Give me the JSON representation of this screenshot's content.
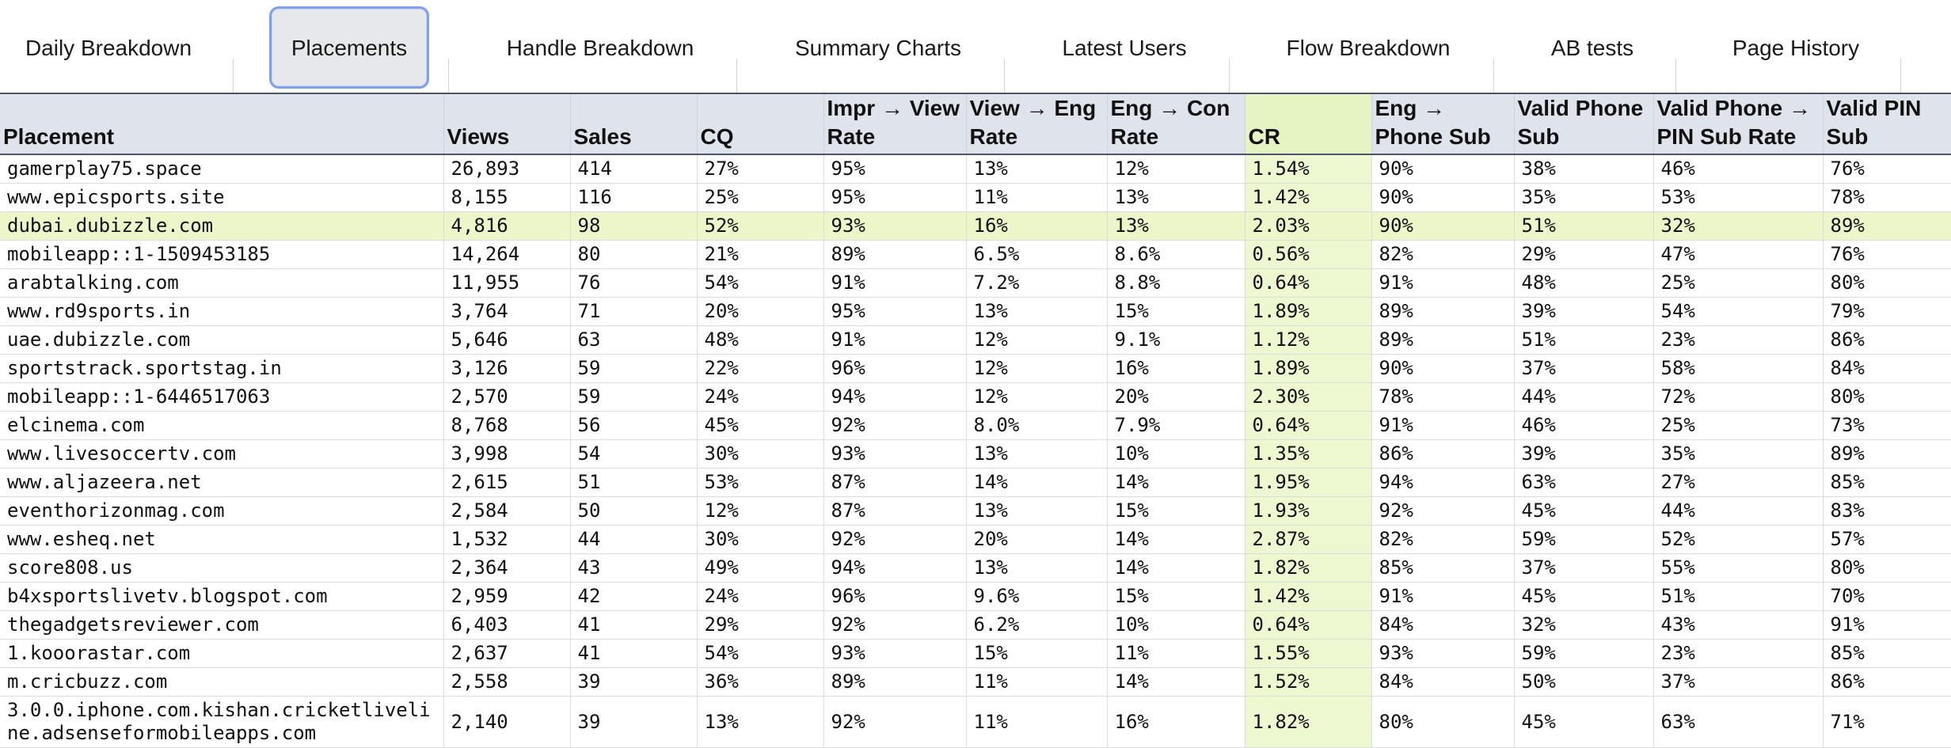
{
  "tabs": [
    {
      "label": "Daily Breakdown"
    },
    {
      "label": "Placements"
    },
    {
      "label": "Handle Breakdown"
    },
    {
      "label": "Summary Charts"
    },
    {
      "label": "Latest Users"
    },
    {
      "label": "Flow Breakdown"
    },
    {
      "label": "AB tests"
    },
    {
      "label": "Page History"
    }
  ],
  "active_tab": "Placements",
  "accent_colors": {
    "active_tab_border": "#7f9fe8",
    "cr_column": "#eef8d0",
    "highlight_row": "#ecf6c9",
    "header_bg": "#dfe4ec"
  },
  "table": {
    "columns": [
      "Placement",
      "Views",
      "Sales",
      "CQ",
      "Impr → View Rate",
      "View → Eng Rate",
      "Eng → Con Rate",
      "CR",
      "Eng → Phone Sub",
      "Valid Phone Sub",
      "Valid Phone → PIN Sub Rate",
      "Valid PIN Sub"
    ],
    "rows": [
      [
        "gamerplay75.space",
        "26,893",
        "414",
        "27%",
        "95%",
        "13%",
        "12%",
        "1.54%",
        "90%",
        "38%",
        "46%",
        "76%"
      ],
      [
        "www.epicsports.site",
        "8,155",
        "116",
        "25%",
        "95%",
        "11%",
        "13%",
        "1.42%",
        "90%",
        "35%",
        "53%",
        "78%"
      ],
      [
        "dubai.dubizzle.com",
        "4,816",
        "98",
        "52%",
        "93%",
        "16%",
        "13%",
        "2.03%",
        "90%",
        "51%",
        "32%",
        "89%"
      ],
      [
        "mobileapp::1-1509453185",
        "14,264",
        "80",
        "21%",
        "89%",
        "6.5%",
        "8.6%",
        "0.56%",
        "82%",
        "29%",
        "47%",
        "76%"
      ],
      [
        "arabtalking.com",
        "11,955",
        "76",
        "54%",
        "91%",
        "7.2%",
        "8.8%",
        "0.64%",
        "91%",
        "48%",
        "25%",
        "80%"
      ],
      [
        "www.rd9sports.in",
        "3,764",
        "71",
        "20%",
        "95%",
        "13%",
        "15%",
        "1.89%",
        "89%",
        "39%",
        "54%",
        "79%"
      ],
      [
        "uae.dubizzle.com",
        "5,646",
        "63",
        "48%",
        "91%",
        "12%",
        "9.1%",
        "1.12%",
        "89%",
        "51%",
        "23%",
        "86%"
      ],
      [
        "sportstrack.sportstag.in",
        "3,126",
        "59",
        "22%",
        "96%",
        "12%",
        "16%",
        "1.89%",
        "90%",
        "37%",
        "58%",
        "84%"
      ],
      [
        "mobileapp::1-6446517063",
        "2,570",
        "59",
        "24%",
        "94%",
        "12%",
        "20%",
        "2.30%",
        "78%",
        "44%",
        "72%",
        "80%"
      ],
      [
        "elcinema.com",
        "8,768",
        "56",
        "45%",
        "92%",
        "8.0%",
        "7.9%",
        "0.64%",
        "91%",
        "46%",
        "25%",
        "73%"
      ],
      [
        "www.livesoccertv.com",
        "3,998",
        "54",
        "30%",
        "93%",
        "13%",
        "10%",
        "1.35%",
        "86%",
        "39%",
        "35%",
        "89%"
      ],
      [
        "www.aljazeera.net",
        "2,615",
        "51",
        "53%",
        "87%",
        "14%",
        "14%",
        "1.95%",
        "94%",
        "63%",
        "27%",
        "85%"
      ],
      [
        "eventhorizonmag.com",
        "2,584",
        "50",
        "12%",
        "87%",
        "13%",
        "15%",
        "1.93%",
        "92%",
        "45%",
        "44%",
        "83%"
      ],
      [
        "www.esheq.net",
        "1,532",
        "44",
        "30%",
        "92%",
        "20%",
        "14%",
        "2.87%",
        "82%",
        "59%",
        "52%",
        "57%"
      ],
      [
        "score808.us",
        "2,364",
        "43",
        "49%",
        "94%",
        "13%",
        "14%",
        "1.82%",
        "85%",
        "37%",
        "55%",
        "80%"
      ],
      [
        "b4xsportslivetv.blogspot.com",
        "2,959",
        "42",
        "24%",
        "96%",
        "9.6%",
        "15%",
        "1.42%",
        "91%",
        "45%",
        "51%",
        "70%"
      ],
      [
        "thegadgetsreviewer.com",
        "6,403",
        "41",
        "29%",
        "92%",
        "6.2%",
        "10%",
        "0.64%",
        "84%",
        "32%",
        "43%",
        "91%"
      ],
      [
        "1.kooorastar.com",
        "2,637",
        "41",
        "54%",
        "93%",
        "15%",
        "11%",
        "1.55%",
        "93%",
        "59%",
        "23%",
        "85%"
      ],
      [
        "m.cricbuzz.com",
        "2,558",
        "39",
        "36%",
        "89%",
        "11%",
        "14%",
        "1.52%",
        "84%",
        "50%",
        "37%",
        "86%"
      ],
      [
        "3.0.0.iphone.com.kishan.cricketliveline.adsenseformobileapps.com",
        "2,140",
        "39",
        "13%",
        "92%",
        "11%",
        "16%",
        "1.82%",
        "80%",
        "45%",
        "63%",
        "71%"
      ]
    ],
    "highlight_row": "dubai.dubizzle.com"
  }
}
